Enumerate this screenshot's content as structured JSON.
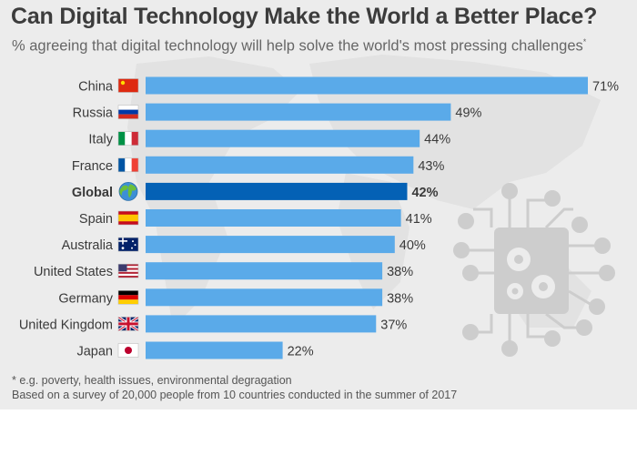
{
  "title": "Can Digital Technology Make the World a Better Place?",
  "subtitle": "% agreeing that digital technology will help solve the world's most pressing challenges",
  "subtitle_mark": "*",
  "notes": [
    "* e.g. poverty, health issues, environmental degragation",
    "Based on a survey of 20,000 people from 10 countries conducted in the summer of 2017"
  ],
  "colors": {
    "bar": "#5aaae9",
    "highlight": "#0461b5",
    "background": "#ececec"
  },
  "chart_data": {
    "type": "bar",
    "orientation": "horizontal",
    "xlim": [
      0,
      72
    ],
    "grid": false,
    "legend": "none",
    "unit": "%",
    "highlight": "Global",
    "categories": [
      "China",
      "Russia",
      "Italy",
      "France",
      "Global",
      "Spain",
      "Australia",
      "United States",
      "Germany",
      "United Kingdom",
      "Japan"
    ],
    "values": [
      71,
      49,
      44,
      43,
      42,
      41,
      40,
      38,
      38,
      37,
      22
    ],
    "labels": [
      "71%",
      "49%",
      "44%",
      "43%",
      "42%",
      "41%",
      "40%",
      "38%",
      "38%",
      "37%",
      "22%"
    ],
    "flags": [
      "china-flag-icon",
      "russia-flag-icon",
      "italy-flag-icon",
      "france-flag-icon",
      "globe-icon",
      "spain-flag-icon",
      "australia-flag-icon",
      "usa-flag-icon",
      "germany-flag-icon",
      "uk-flag-icon",
      "japan-flag-icon"
    ]
  }
}
